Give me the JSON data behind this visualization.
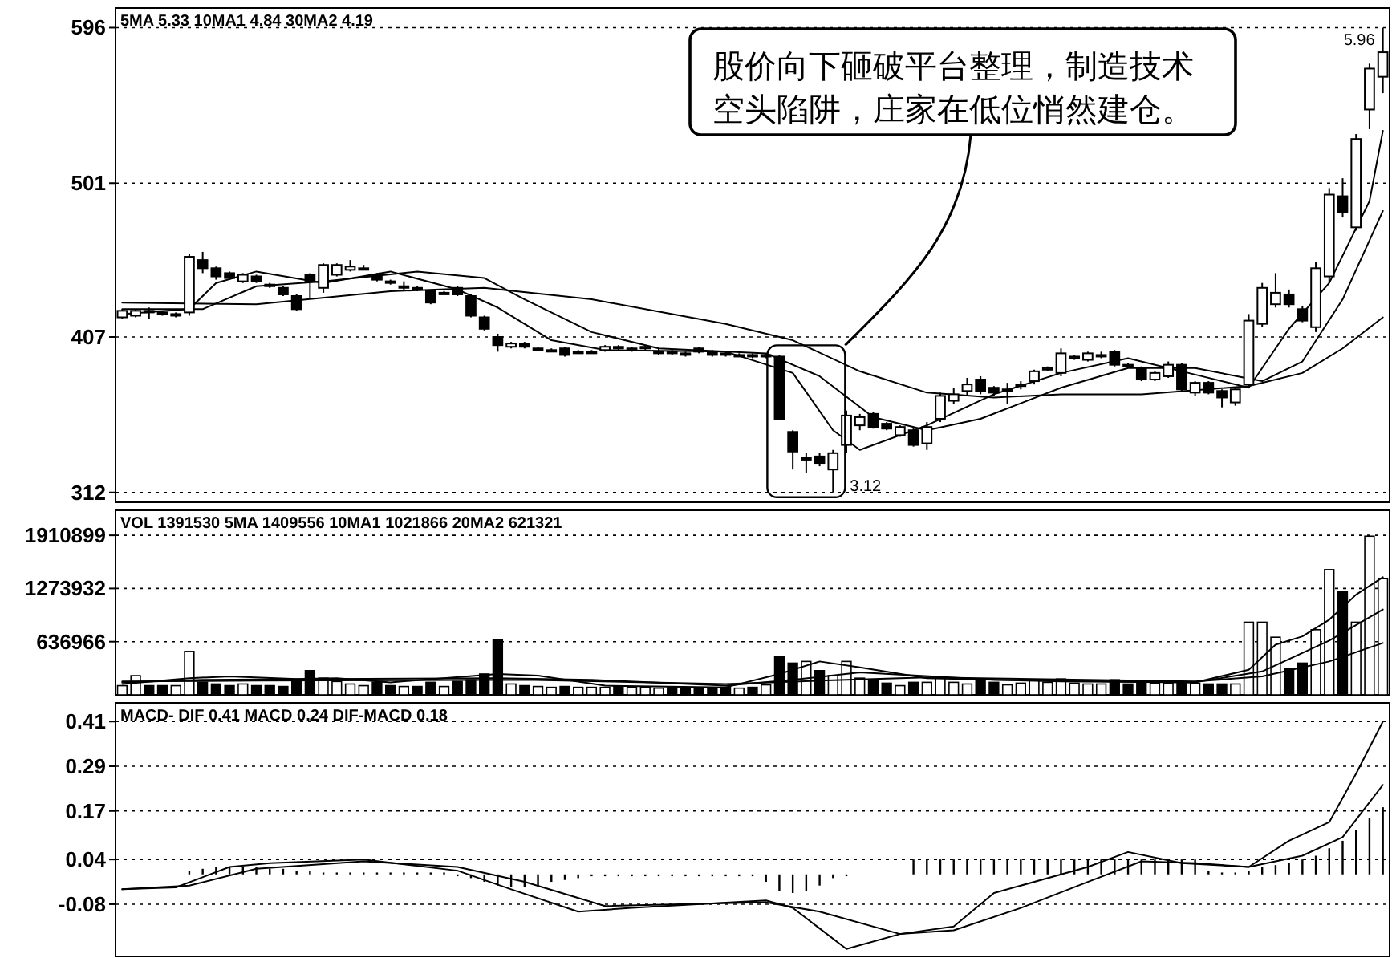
{
  "chart_data": [
    {
      "type": "candlestick",
      "subtitle": "5MA 5.33  10MA1 4.84  30MA2 4.19",
      "categories": [
        null,
        null,
        null,
        null,
        null,
        null,
        null,
        null,
        null,
        null,
        null,
        null,
        null,
        null,
        null,
        null,
        null,
        null,
        null,
        null,
        null,
        null,
        null,
        null,
        null,
        null,
        null,
        null,
        null,
        null,
        null,
        null,
        null,
        null,
        null,
        null,
        null,
        null,
        null,
        null,
        null,
        null,
        null,
        null,
        null,
        null,
        null,
        null,
        null,
        null,
        null,
        null,
        null,
        null,
        null,
        null,
        null,
        null,
        null,
        null,
        null,
        null,
        null,
        null,
        null,
        null,
        null,
        null,
        null,
        null,
        null,
        null,
        null,
        null,
        null,
        null,
        null,
        null,
        null,
        null,
        null,
        null,
        null,
        null,
        null,
        null,
        null,
        null,
        null,
        null,
        null,
        null,
        null,
        null,
        null
      ],
      "ohlc": [
        [
          419,
          424,
          418,
          423
        ],
        [
          420,
          424,
          419,
          423
        ],
        [
          423,
          425,
          418,
          422
        ],
        [
          422,
          423,
          420,
          421
        ],
        [
          420,
          422,
          419,
          421
        ],
        [
          422,
          458,
          420,
          456
        ],
        [
          454,
          459,
          446,
          449
        ],
        [
          449,
          450,
          442,
          444
        ],
        [
          446,
          447,
          442,
          443
        ],
        [
          441,
          446,
          440,
          445
        ],
        [
          444,
          445,
          440,
          441
        ],
        [
          439,
          440,
          437,
          438
        ],
        [
          437,
          438,
          432,
          433
        ],
        [
          432,
          433,
          423,
          424
        ],
        [
          445,
          446,
          430,
          441
        ],
        [
          437,
          452,
          434,
          451
        ],
        [
          445,
          452,
          444,
          451
        ],
        [
          448,
          454,
          447,
          450
        ],
        [
          449,
          451,
          448,
          449
        ],
        [
          445,
          446,
          441,
          442
        ],
        [
          441,
          442,
          439,
          440
        ],
        [
          438,
          441,
          435,
          438
        ],
        [
          437,
          438,
          435,
          436
        ],
        [
          435,
          436,
          427,
          428
        ],
        [
          434,
          435,
          433,
          434
        ],
        [
          437,
          438,
          432,
          433
        ],
        [
          432,
          433,
          419,
          420
        ],
        [
          419,
          420,
          411,
          412
        ],
        [
          407,
          409,
          398,
          402
        ],
        [
          401,
          404,
          400,
          403
        ],
        [
          403,
          404,
          400,
          401
        ],
        [
          400,
          401,
          399,
          400
        ],
        [
          399,
          400,
          398,
          399
        ],
        [
          400,
          401,
          395,
          396
        ],
        [
          398,
          399,
          397,
          398
        ],
        [
          398,
          399,
          397,
          398
        ],
        [
          399,
          402,
          398,
          401
        ],
        [
          401,
          402,
          399,
          400
        ],
        [
          399,
          401,
          398,
          400
        ],
        [
          400,
          402,
          399,
          401
        ],
        [
          398,
          400,
          396,
          398
        ],
        [
          398,
          399,
          396,
          397
        ],
        [
          397,
          398,
          395,
          396
        ],
        [
          400,
          401,
          397,
          398
        ],
        [
          398,
          399,
          395,
          396
        ],
        [
          397,
          398,
          395,
          396
        ],
        [
          396,
          397,
          395,
          396
        ],
        [
          396,
          397,
          394,
          395
        ],
        [
          395,
          397,
          394,
          396
        ],
        [
          395,
          396,
          356,
          357
        ],
        [
          349,
          350,
          326,
          337
        ],
        [
          333,
          336,
          324,
          333
        ],
        [
          334,
          336,
          328,
          330
        ],
        [
          326,
          338,
          312,
          336
        ],
        [
          341,
          362,
          336,
          359
        ],
        [
          353,
          360,
          350,
          358
        ],
        [
          360,
          361,
          351,
          352
        ],
        [
          354,
          355,
          350,
          351
        ],
        [
          347,
          353,
          346,
          352
        ],
        [
          350,
          352,
          340,
          341
        ],
        [
          342,
          355,
          338,
          352
        ],
        [
          357,
          373,
          355,
          371
        ],
        [
          368,
          376,
          366,
          372
        ],
        [
          374,
          382,
          371,
          378
        ],
        [
          381,
          383,
          372,
          374
        ],
        [
          376,
          377,
          371,
          373
        ],
        [
          375,
          379,
          366,
          375
        ],
        [
          377,
          380,
          375,
          378
        ],
        [
          380,
          387,
          378,
          386
        ],
        [
          387,
          389,
          386,
          388
        ],
        [
          385,
          400,
          383,
          397
        ],
        [
          394,
          396,
          393,
          395
        ],
        [
          393,
          398,
          392,
          397
        ],
        [
          396,
          398,
          394,
          396
        ],
        [
          398,
          399,
          389,
          390
        ],
        [
          390,
          391,
          388,
          389
        ],
        [
          388,
          389,
          380,
          381
        ],
        [
          381,
          386,
          380,
          385
        ],
        [
          383,
          392,
          382,
          390
        ],
        [
          390,
          391,
          374,
          375
        ],
        [
          373,
          380,
          371,
          379
        ],
        [
          379,
          380,
          372,
          373
        ],
        [
          374,
          375,
          364,
          370
        ],
        [
          367,
          376,
          365,
          375
        ],
        [
          378,
          421,
          376,
          417
        ],
        [
          415,
          440,
          413,
          437
        ],
        [
          427,
          446,
          425,
          434
        ],
        [
          433,
          436,
          425,
          427
        ],
        [
          424,
          426,
          416,
          417
        ],
        [
          413,
          453,
          410,
          449
        ],
        [
          444,
          498,
          440,
          494
        ],
        [
          493,
          504,
          480,
          483
        ],
        [
          474,
          531,
          472,
          528
        ],
        [
          546,
          574,
          534,
          571
        ],
        [
          566,
          596,
          556,
          581
        ]
      ],
      "series": [
        {
          "type": "line",
          "color": "#000000",
          "values": [
            421,
            null,
            null,
            null,
            null,
            424,
            null,
            440,
            null,
            null,
            447,
            null,
            null,
            null,
            null,
            440,
            null,
            null,
            null,
            null,
            447,
            null,
            null,
            null,
            null,
            436,
            null,
            null,
            425,
            null,
            null,
            null,
            405,
            null,
            null,
            null,
            399,
            null,
            null,
            null,
            null,
            null,
            null,
            null,
            null,
            398,
            null,
            null,
            null,
            null,
            385,
            null,
            null,
            350,
            null,
            338,
            null,
            null,
            null,
            null,
            353,
            null,
            null,
            null,
            null,
            372,
            null,
            null,
            null,
            null,
            385,
            null,
            null,
            null,
            null,
            394,
            null,
            null,
            null,
            null,
            384,
            null,
            null,
            null,
            376,
            null,
            null,
            412,
            null,
            null,
            440,
            null,
            null,
            490,
            533
          ]
        },
        {
          "type": "line",
          "color": "#000000",
          "values": [
            424,
            null,
            null,
            null,
            null,
            null,
            424,
            null,
            null,
            null,
            438,
            null,
            null,
            null,
            null,
            441,
            null,
            null,
            null,
            null,
            null,
            null,
            447,
            null,
            null,
            null,
            null,
            443,
            null,
            null,
            430,
            null,
            null,
            null,
            null,
            410,
            null,
            null,
            null,
            null,
            400,
            null,
            null,
            null,
            null,
            null,
            null,
            null,
            397,
            null,
            null,
            null,
            383,
            null,
            null,
            null,
            358,
            null,
            null,
            null,
            350,
            null,
            null,
            null,
            357,
            null,
            null,
            null,
            null,
            null,
            376,
            null,
            null,
            null,
            null,
            388,
            null,
            null,
            null,
            null,
            388,
            null,
            null,
            null,
            null,
            380,
            null,
            null,
            392,
            null,
            null,
            430,
            null,
            null,
            484
          ]
        },
        {
          "type": "line",
          "color": "#000000",
          "values": [
            428,
            null,
            null,
            null,
            null,
            null,
            null,
            null,
            null,
            null,
            427,
            null,
            null,
            null,
            null,
            null,
            null,
            null,
            null,
            null,
            435,
            null,
            null,
            null,
            null,
            null,
            null,
            437,
            null,
            null,
            null,
            null,
            null,
            null,
            null,
            430,
            null,
            null,
            null,
            null,
            null,
            null,
            null,
            null,
            null,
            415,
            null,
            null,
            null,
            null,
            405,
            null,
            null,
            null,
            null,
            386,
            null,
            null,
            null,
            null,
            373,
            null,
            null,
            null,
            null,
            370,
            null,
            null,
            null,
            null,
            372,
            null,
            null,
            null,
            null,
            null,
            372,
            null,
            null,
            null,
            null,
            null,
            null,
            null,
            377,
            null,
            null,
            null,
            385,
            null,
            null,
            400,
            null,
            null,
            419
          ]
        }
      ],
      "ylim": [
        306,
        608
      ],
      "yticks": [
        312,
        407,
        501,
        596
      ],
      "grid": "y",
      "annotations": [
        "股价向下砸破平台整理，制造技术空头陷阱，庄家在低位悄然建仓。",
        "3.12",
        "5.96"
      ]
    },
    {
      "type": "bar",
      "subtitle": "VOL 1391530  5MA 1409556  10MA1 1021866  20MA2 621321",
      "categories": [
        null,
        null,
        null,
        null,
        null,
        null,
        null,
        null,
        null,
        null,
        null,
        null,
        null,
        null,
        null,
        null,
        null,
        null,
        null,
        null,
        null,
        null,
        null,
        null,
        null,
        null,
        null,
        null,
        null,
        null,
        null,
        null,
        null,
        null,
        null,
        null,
        null,
        null,
        null,
        null,
        null,
        null,
        null,
        null,
        null,
        null,
        null,
        null,
        null,
        null,
        null,
        null,
        null,
        null,
        null,
        null,
        null,
        null,
        null,
        null,
        null,
        null,
        null,
        null,
        null,
        null,
        null,
        null,
        null,
        null,
        null,
        null,
        null,
        null,
        null,
        null,
        null,
        null,
        null,
        null,
        null,
        null,
        null,
        null,
        null,
        null,
        null,
        null,
        null,
        null,
        null,
        null,
        null,
        null,
        null
      ],
      "series": [
        {
          "type": "bar",
          "values": [
            110000,
            230000,
            110000,
            110000,
            110000,
            520000,
            150000,
            130000,
            110000,
            130000,
            110000,
            110000,
            100000,
            170000,
            290000,
            200000,
            160000,
            130000,
            110000,
            150000,
            110000,
            100000,
            100000,
            150000,
            100000,
            160000,
            180000,
            250000,
            660000,
            130000,
            110000,
            100000,
            90000,
            100000,
            90000,
            90000,
            90000,
            100000,
            90000,
            90000,
            80000,
            90000,
            80000,
            80000,
            80000,
            90000,
            80000,
            90000,
            120000,
            460000,
            380000,
            400000,
            290000,
            230000,
            400000,
            200000,
            170000,
            140000,
            110000,
            150000,
            150000,
            200000,
            150000,
            130000,
            190000,
            150000,
            120000,
            140000,
            180000,
            150000,
            190000,
            140000,
            130000,
            130000,
            180000,
            130000,
            160000,
            140000,
            140000,
            150000,
            140000,
            130000,
            130000,
            130000,
            870000,
            870000,
            690000,
            310000,
            380000,
            780000,
            1500000,
            1240000,
            870000,
            1900000,
            1391530
          ],
          "colors": [
            "#ffffff",
            "#ffffff",
            "#000000",
            "#000000",
            "#ffffff",
            "#ffffff",
            "#000000",
            "#000000",
            "#000000",
            "#ffffff",
            "#000000",
            "#000000",
            "#000000",
            "#000000",
            "#000000",
            "#ffffff",
            "#ffffff",
            "#ffffff",
            "#ffffff",
            "#000000",
            "#000000",
            "#ffffff",
            "#000000",
            "#000000",
            "#ffffff",
            "#000000",
            "#000000",
            "#000000",
            "#000000",
            "#ffffff",
            "#000000",
            "#ffffff",
            "#ffffff",
            "#000000",
            "#ffffff",
            "#ffffff",
            "#ffffff",
            "#000000",
            "#ffffff",
            "#ffffff",
            "#ffffff",
            "#000000",
            "#000000",
            "#000000",
            "#000000",
            "#000000",
            "#ffffff",
            "#000000",
            "#ffffff",
            "#000000",
            "#000000",
            "#ffffff",
            "#000000",
            "#ffffff",
            "#ffffff",
            "#ffffff",
            "#000000",
            "#000000",
            "#ffffff",
            "#000000",
            "#ffffff",
            "#ffffff",
            "#ffffff",
            "#ffffff",
            "#000000",
            "#000000",
            "#ffffff",
            "#ffffff",
            "#ffffff",
            "#ffffff",
            "#ffffff",
            "#ffffff",
            "#ffffff",
            "#ffffff",
            "#000000",
            "#000000",
            "#000000",
            "#ffffff",
            "#ffffff",
            "#000000",
            "#ffffff",
            "#000000",
            "#000000",
            "#ffffff",
            "#ffffff",
            "#ffffff",
            "#ffffff",
            "#000000",
            "#000000",
            "#ffffff",
            "#ffffff",
            "#000000",
            "#ffffff",
            "#ffffff",
            "#ffffff"
          ]
        },
        {
          "type": "line",
          "color": "#000000",
          "values": [
            130000,
            null,
            null,
            null,
            null,
            200000,
            null,
            null,
            220000,
            null,
            null,
            null,
            null,
            190000,
            null,
            null,
            200000,
            null,
            null,
            null,
            150000,
            null,
            null,
            null,
            null,
            null,
            null,
            null,
            250000,
            null,
            null,
            230000,
            null,
            null,
            null,
            null,
            110000,
            null,
            null,
            null,
            null,
            null,
            null,
            null,
            null,
            90000,
            null,
            null,
            null,
            250000,
            null,
            null,
            400000,
            null,
            null,
            330000,
            null,
            null,
            null,
            null,
            200000,
            null,
            null,
            null,
            null,
            null,
            null,
            null,
            null,
            null,
            160000,
            null,
            null,
            null,
            null,
            null,
            null,
            null,
            null,
            null,
            150000,
            null,
            null,
            null,
            300000,
            null,
            600000,
            null,
            700000,
            null,
            900000,
            null,
            1200000,
            null,
            1409556
          ]
        },
        {
          "type": "line",
          "color": "#000000",
          "values": [
            150000,
            null,
            null,
            null,
            null,
            null,
            180000,
            null,
            null,
            null,
            null,
            null,
            null,
            null,
            null,
            190000,
            null,
            null,
            null,
            null,
            null,
            null,
            null,
            null,
            null,
            null,
            null,
            null,
            200000,
            null,
            null,
            null,
            null,
            null,
            null,
            180000,
            null,
            null,
            null,
            null,
            null,
            null,
            null,
            null,
            null,
            110000,
            null,
            null,
            null,
            null,
            180000,
            null,
            null,
            null,
            null,
            270000,
            null,
            null,
            null,
            null,
            null,
            null,
            null,
            null,
            null,
            180000,
            null,
            null,
            null,
            null,
            null,
            null,
            null,
            null,
            null,
            null,
            null,
            null,
            null,
            null,
            150000,
            null,
            null,
            null,
            null,
            280000,
            null,
            null,
            null,
            null,
            650000,
            null,
            null,
            null,
            1021866
          ]
        },
        {
          "type": "line",
          "color": "#000000",
          "values": [
            160000,
            null,
            null,
            null,
            null,
            null,
            null,
            null,
            null,
            null,
            170000,
            null,
            null,
            null,
            null,
            null,
            null,
            null,
            null,
            null,
            null,
            null,
            null,
            null,
            null,
            null,
            null,
            null,
            null,
            null,
            180000,
            null,
            null,
            null,
            null,
            null,
            null,
            null,
            null,
            null,
            null,
            null,
            null,
            null,
            null,
            130000,
            null,
            null,
            null,
            null,
            null,
            null,
            170000,
            null,
            null,
            null,
            null,
            null,
            null,
            null,
            210000,
            null,
            null,
            null,
            null,
            null,
            null,
            null,
            null,
            null,
            null,
            null,
            null,
            null,
            null,
            null,
            null,
            null,
            null,
            null,
            160000,
            null,
            null,
            null,
            null,
            220000,
            null,
            null,
            null,
            null,
            400000,
            null,
            null,
            null,
            621321
          ]
        }
      ],
      "ylim": [
        0,
        2210000
      ],
      "yticks": [
        636966,
        1273932,
        1910899
      ],
      "grid": "y"
    },
    {
      "type": "line",
      "subtitle": "MACD- DIF 0.41  MACD 0.24  DIF-MACD 0.18",
      "categories": [
        null,
        null,
        null,
        null,
        null,
        null,
        null,
        null,
        null,
        null,
        null,
        null,
        null,
        null,
        null,
        null,
        null,
        null,
        null,
        null,
        null,
        null,
        null,
        null,
        null,
        null,
        null,
        null,
        null,
        null,
        null,
        null,
        null,
        null,
        null,
        null,
        null,
        null,
        null,
        null,
        null,
        null,
        null,
        null,
        null,
        null,
        null,
        null,
        null,
        null,
        null,
        null,
        null,
        null,
        null,
        null,
        null,
        null,
        null,
        null,
        null,
        null,
        null,
        null,
        null,
        null,
        null,
        null,
        null,
        null,
        null,
        null,
        null,
        null,
        null,
        null,
        null,
        null,
        null,
        null,
        null,
        null,
        null,
        null,
        null,
        null,
        null,
        null,
        null,
        null,
        null,
        null,
        null,
        null,
        null
      ],
      "series": [
        {
          "type": "line",
          "color": "#000000",
          "values": [
            -0.04,
            null,
            null,
            null,
            -0.035,
            null,
            null,
            null,
            0.02,
            null,
            null,
            0.03,
            null,
            null,
            null,
            null,
            null,
            null,
            0.04,
            null,
            null,
            null,
            null,
            null,
            null,
            0.01,
            null,
            null,
            null,
            -0.04,
            null,
            null,
            null,
            null,
            -0.1,
            null,
            null,
            null,
            -0.09,
            null,
            null,
            null,
            null,
            null,
            null,
            null,
            null,
            null,
            -0.07,
            null,
            -0.09,
            null,
            null,
            null,
            -0.2,
            null,
            null,
            null,
            -0.16,
            null,
            null,
            null,
            -0.14,
            null,
            null,
            -0.05,
            null,
            null,
            null,
            null,
            null,
            null,
            0.02,
            null,
            null,
            0.06,
            null,
            null,
            null,
            0.03,
            null,
            null,
            null,
            null,
            0.02,
            null,
            null,
            0.09,
            null,
            null,
            0.14,
            null,
            0.27,
            null,
            0.41
          ]
        },
        {
          "type": "line",
          "color": "#000000",
          "values": [
            -0.04,
            null,
            null,
            null,
            null,
            -0.03,
            null,
            null,
            null,
            null,
            0.015,
            null,
            null,
            null,
            null,
            null,
            null,
            null,
            0.035,
            null,
            null,
            null,
            null,
            null,
            null,
            0.02,
            null,
            null,
            null,
            null,
            -0.02,
            null,
            null,
            null,
            null,
            null,
            -0.085,
            null,
            null,
            null,
            null,
            null,
            null,
            null,
            null,
            null,
            null,
            null,
            -0.075,
            null,
            null,
            null,
            -0.1,
            null,
            null,
            null,
            null,
            null,
            -0.16,
            null,
            null,
            null,
            -0.15,
            null,
            null,
            null,
            null,
            -0.09,
            null,
            null,
            null,
            null,
            -0.02,
            null,
            null,
            null,
            0.035,
            null,
            null,
            null,
            0.03,
            null,
            null,
            null,
            0.02,
            null,
            null,
            null,
            0.05,
            null,
            null,
            0.1,
            null,
            null,
            0.24
          ]
        },
        {
          "type": "bar",
          "color": "#000000",
          "values": [
            null,
            null,
            null,
            null,
            null,
            0.01,
            0.015,
            0.02,
            0.02,
            0.02,
            0.02,
            0.015,
            0.015,
            0.01,
            0.01,
            0.005,
            0.005,
            0.005,
            0.005,
            0.005,
            0.005,
            0.005,
            0.005,
            0.005,
            0.005,
            -0.005,
            -0.01,
            -0.02,
            -0.03,
            -0.035,
            -0.035,
            -0.03,
            -0.02,
            -0.015,
            -0.01,
            -0.005,
            -0.005,
            -0.005,
            -0.005,
            -0.005,
            -0.005,
            -0.005,
            -0.005,
            -0.005,
            -0.005,
            -0.005,
            -0.005,
            -0.005,
            -0.02,
            -0.045,
            -0.05,
            -0.045,
            -0.03,
            -0.01,
            -0.005,
            null,
            null,
            null,
            null,
            0.04,
            0.04,
            0.04,
            0.04,
            0.04,
            0.04,
            0.04,
            0.04,
            0.04,
            0.04,
            0.04,
            0.04,
            0.04,
            0.04,
            0.04,
            0.04,
            0.04,
            0.04,
            0.04,
            0.04,
            0.04,
            0.04,
            0.01,
            0.005,
            0.005,
            0.01,
            0.02,
            0.025,
            0.03,
            0.04,
            0.05,
            0.07,
            0.09,
            0.12,
            0.15,
            0.18
          ]
        }
      ],
      "ylim": [
        -0.22,
        0.46
      ],
      "yticks": [
        -0.08,
        0.04,
        0.17,
        0.29,
        0.41
      ],
      "grid": "y"
    }
  ]
}
